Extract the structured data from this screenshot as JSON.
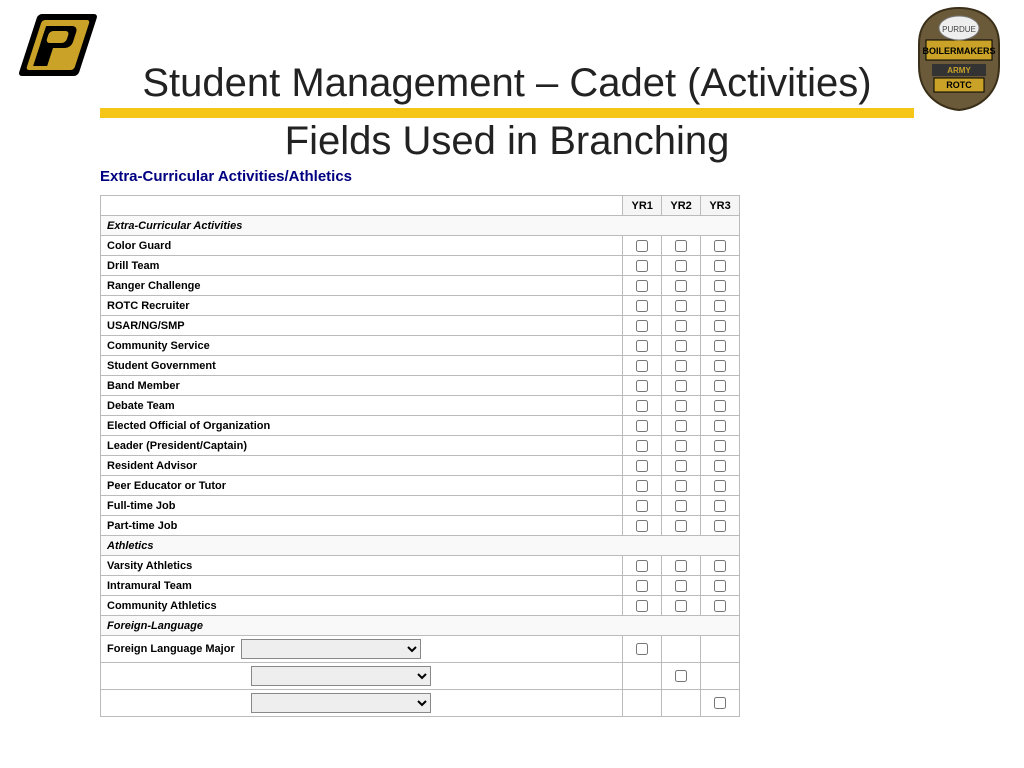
{
  "title": {
    "line1": "Student Management – Cadet (Activities)",
    "line2": "Fields Used in Branching"
  },
  "section_heading": "Extra-Curricular Activities/Athletics",
  "columns": {
    "yr1": "YR1",
    "yr2": "YR2",
    "yr3": "YR3"
  },
  "groups": [
    {
      "name": "Extra-Curricular Activities",
      "rows": [
        "Color Guard",
        "Drill Team",
        "Ranger Challenge",
        "ROTC Recruiter",
        "USAR/NG/SMP",
        "Community Service",
        "Student Government",
        "Band Member",
        "Debate Team",
        "Elected Official of Organization",
        "Leader (President/Captain)",
        "Resident Advisor",
        "Peer Educator or Tutor",
        "Full-time Job",
        "Part-time Job"
      ]
    },
    {
      "name": "Athletics",
      "rows": [
        "Varsity Athletics",
        "Intramural Team",
        "Community Athletics"
      ]
    },
    {
      "name": "Foreign-Language",
      "rows": []
    }
  ],
  "foreign_language": {
    "label": "Foreign Language Major",
    "dropdowns": [
      "",
      "",
      ""
    ]
  },
  "colors": {
    "gold": "#f5c518",
    "navy": "#000080",
    "border": "#bbbbbb"
  }
}
